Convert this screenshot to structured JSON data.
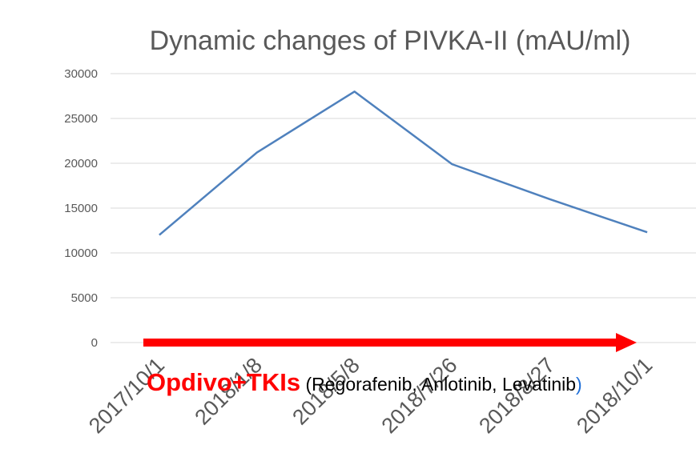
{
  "chart_data": {
    "type": "line",
    "title": "Dynamic changes of PIVKA-II (mAU/ml)",
    "xlabel": "",
    "ylabel": "",
    "categories": [
      "2017/10/1",
      "2018/1/8",
      "2018/5/8",
      "2018/7/26",
      "2018/8/27",
      "2018/10/1"
    ],
    "series": [
      {
        "values": [
          12000,
          21200,
          28000,
          19900,
          16000,
          12300
        ]
      }
    ],
    "ylim": [
      0,
      30000
    ],
    "yticks": [
      "0",
      "5000",
      "10000",
      "15000",
      "20000",
      "25000",
      "30000"
    ],
    "grid": true,
    "legend": "none",
    "annotation": {
      "main": "Opdivo+TKIs",
      "open": " (",
      "drugs": "Regorafenib, Anlotinib, Levatinib",
      "close": ")"
    },
    "colors": {
      "line": "#4f81bd",
      "grid": "#d9d9d9",
      "arrow": "#ff0000",
      "text": "#595959",
      "annotation_main": "#ff0000",
      "annotation_text": "#000000",
      "annotation_paren": "#1f6fd8"
    }
  }
}
